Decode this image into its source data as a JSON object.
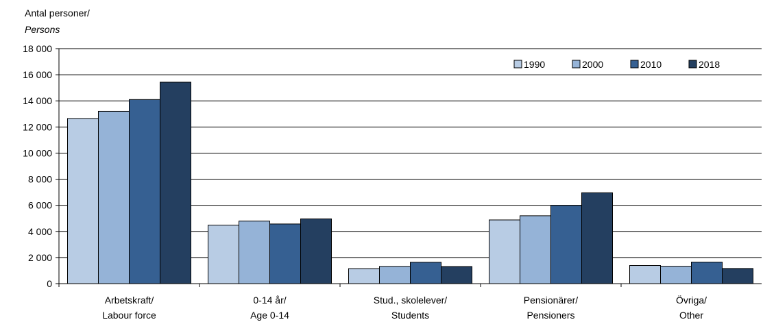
{
  "chart_data": {
    "type": "bar",
    "title": "",
    "ylabel_line1": "Antal personer/",
    "ylabel_line2": "Persons",
    "xlabel": "",
    "ylim": [
      0,
      18000
    ],
    "yticks": [
      0,
      2000,
      4000,
      6000,
      8000,
      10000,
      12000,
      14000,
      16000,
      18000
    ],
    "ytick_labels": [
      "0",
      "2 000",
      "4 000",
      "6 000",
      "8 000",
      "10 000",
      "12 000",
      "14 000",
      "16 000",
      "18 000"
    ],
    "grid": true,
    "legend_position": "top-right",
    "categories": [
      {
        "line1": "Arbetskraft/",
        "line2": "Labour force"
      },
      {
        "line1": "0-14 år/",
        "line2": "Age 0-14"
      },
      {
        "line1": "Stud., skolelever/",
        "line2": "Students"
      },
      {
        "line1": "Pensionärer/",
        "line2": "Pensioners"
      },
      {
        "line1": "Övriga/",
        "line2": "Other"
      }
    ],
    "series": [
      {
        "name": "1990",
        "color": "#b8cce4",
        "values": [
          12650,
          4480,
          1150,
          4880,
          1390
        ]
      },
      {
        "name": "2000",
        "color": "#95b3d7",
        "values": [
          13200,
          4790,
          1320,
          5200,
          1330
        ]
      },
      {
        "name": "2010",
        "color": "#366092",
        "values": [
          14100,
          4570,
          1640,
          5990,
          1650
        ]
      },
      {
        "name": "2018",
        "color": "#243f60",
        "values": [
          15430,
          4960,
          1310,
          6960,
          1160
        ]
      }
    ]
  }
}
